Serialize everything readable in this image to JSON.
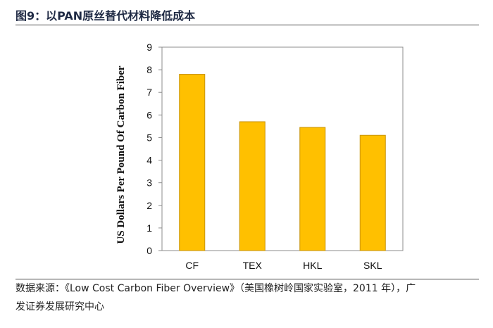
{
  "figure": {
    "title": "图9：以PAN原丝替代材料降低成本"
  },
  "source": {
    "line1_prefix": "数据来源：",
    "line1_rest": "《Low Cost Carbon Fiber Overview》（美国橡树岭国家实验室，2011 年），广",
    "line2": "发证券发展研究中心"
  },
  "chart_data": {
    "type": "bar",
    "title": "",
    "xlabel": "",
    "ylabel": "US Dollars Per Pound Of  Carbon Fiber",
    "categories": [
      "CF",
      "TEX",
      "HKL",
      "SKL"
    ],
    "values": [
      7.8,
      5.7,
      5.45,
      5.1
    ],
    "ylim": [
      0,
      9
    ],
    "yticks": [
      "0",
      "1",
      "2",
      "3",
      "4",
      "5",
      "6",
      "7",
      "8",
      "9"
    ],
    "grid": false,
    "legend": "none",
    "bar_color": "#FFC000",
    "bar_edge_color": "#C89200"
  }
}
